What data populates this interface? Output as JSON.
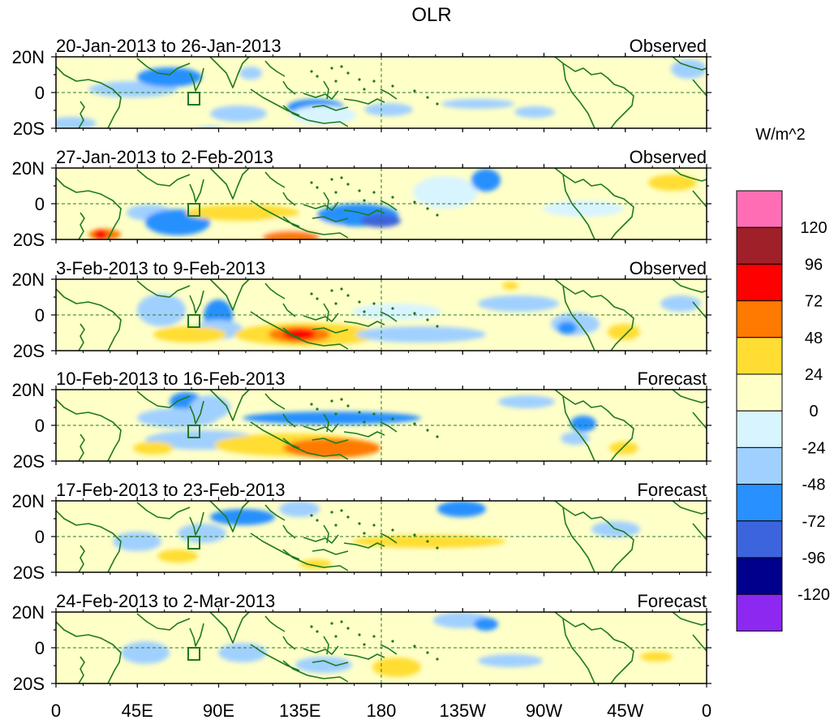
{
  "title": "OLR",
  "units": "W/m^2",
  "lat_labels": [
    "20N",
    "0",
    "20S"
  ],
  "lon_labels": [
    "0",
    "45E",
    "90E",
    "135E",
    "180",
    "135W",
    "90W",
    "45W",
    "0"
  ],
  "panels": [
    {
      "dates": "20-Jan-2013 to 26-Jan-2013",
      "type": "Observed"
    },
    {
      "dates": "27-Jan-2013 to 2-Feb-2013",
      "type": "Observed"
    },
    {
      "dates": "3-Feb-2013 to 9-Feb-2013",
      "type": "Observed"
    },
    {
      "dates": "10-Feb-2013 to 16-Feb-2013",
      "type": "Forecast"
    },
    {
      "dates": "17-Feb-2013 to 23-Feb-2013",
      "type": "Forecast"
    },
    {
      "dates": "24-Feb-2013 to 2-Mar-2013",
      "type": "Forecast"
    }
  ],
  "colorbar": {
    "colors": [
      "#ff6eb4",
      "#a0202a",
      "#ff0000",
      "#ff7a00",
      "#ffdd33",
      "#ffffc8",
      "#d8f4ff",
      "#a0d0ff",
      "#2890ff",
      "#3c64dc",
      "#00008c",
      "#8c28f0"
    ],
    "labels": [
      "120",
      "96",
      "72",
      "48",
      "24",
      "0",
      "-24",
      "-48",
      "-72",
      "-96",
      "-120"
    ]
  },
  "style": {
    "background_fill": "#ffffc8",
    "coast_color": "#1e7a1e",
    "reference_line_color": "#2a7a2a"
  }
}
